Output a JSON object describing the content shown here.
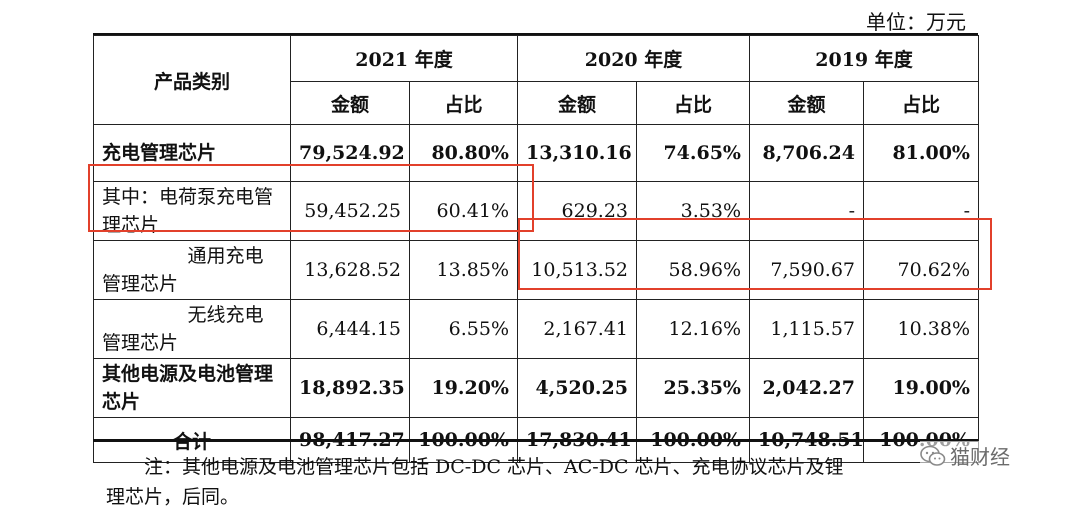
{
  "unit": "单位：万元",
  "header": {
    "category": "产品类别",
    "years": [
      "2021 年度",
      "2020 年度",
      "2019 年度"
    ],
    "amount": "金额",
    "ratio": "占比"
  },
  "rows": [
    {
      "label": "充电管理芯片",
      "bold": true,
      "v": [
        "79,524.92",
        "80.80%",
        "13,310.16",
        "74.65%",
        "8,706.24",
        "81.00%"
      ]
    },
    {
      "label": "其中：电荷泵充电管理芯片",
      "v": [
        "59,452.25",
        "60.41%",
        "629.23",
        "3.53%",
        "-",
        "-"
      ]
    },
    {
      "label": "通用充电管理芯片",
      "v": [
        "13,628.52",
        "13.85%",
        "10,513.52",
        "58.96%",
        "7,590.67",
        "70.62%"
      ]
    },
    {
      "label": "无线充电管理芯片",
      "v": [
        "6,444.15",
        "6.55%",
        "2,167.41",
        "12.16%",
        "1,115.57",
        "10.38%"
      ]
    },
    {
      "label": "其他电源及电池管理芯片",
      "bold": true,
      "v": [
        "18,892.35",
        "19.20%",
        "4,520.25",
        "25.35%",
        "2,042.27",
        "19.00%"
      ]
    },
    {
      "label": "合计",
      "bold": true,
      "v": [
        "98,417.27",
        "100.00%",
        "17,830.41",
        "100.00%",
        "10,748.51",
        "100.00%"
      ]
    }
  ],
  "note_line1": "注：其他电源及电池管理芯片包括 DC-DC 芯片、AC-DC 芯片、充电协议芯片及锂",
  "note_line2": "理芯片，后同。",
  "watermark": "猫财经",
  "highlight_color": "#e2402b"
}
